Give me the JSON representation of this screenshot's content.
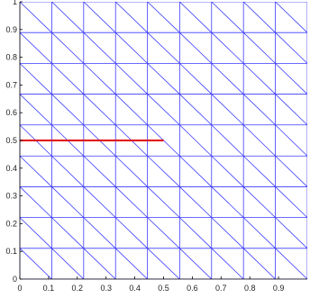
{
  "chart_data": {
    "type": "line",
    "title": "",
    "xlabel": "",
    "ylabel": "",
    "xlim": [
      0,
      1
    ],
    "ylim": [
      0,
      1
    ],
    "x_ticks": [
      0,
      0.1,
      0.2,
      0.3,
      0.4,
      0.5,
      0.6,
      0.7,
      0.8,
      0.9
    ],
    "x_tick_labels": [
      "0",
      "0.1",
      "0.2",
      "0.3",
      "0.4",
      "0.5",
      "0.6",
      "0.7",
      "0.8",
      "0.9"
    ],
    "y_ticks": [
      0,
      0.1,
      0.2,
      0.3,
      0.4,
      0.5,
      0.6,
      0.7,
      0.8,
      0.9,
      1
    ],
    "y_tick_labels": [
      "0",
      "0.1",
      "0.2",
      "0.3",
      "0.4",
      "0.5",
      "0.6",
      "0.7",
      "0.8",
      "0.9",
      "1"
    ],
    "mesh": {
      "description_type": "triangular_mesh",
      "nx": 9,
      "ny": 9,
      "x_nodes": [
        0,
        0.111,
        0.222,
        0.333,
        0.444,
        0.556,
        0.667,
        0.778,
        0.889,
        1.0
      ],
      "y_nodes": [
        0,
        0.111,
        0.222,
        0.333,
        0.444,
        0.556,
        0.667,
        0.778,
        0.889,
        1.0
      ],
      "diagonal": "down-right",
      "color": "#3b3bff"
    },
    "series": [
      {
        "x": [
          0,
          0.5
        ],
        "y": [
          0.5,
          0.5
        ],
        "color": "#e00000"
      }
    ],
    "grid": false,
    "legend": "none"
  }
}
